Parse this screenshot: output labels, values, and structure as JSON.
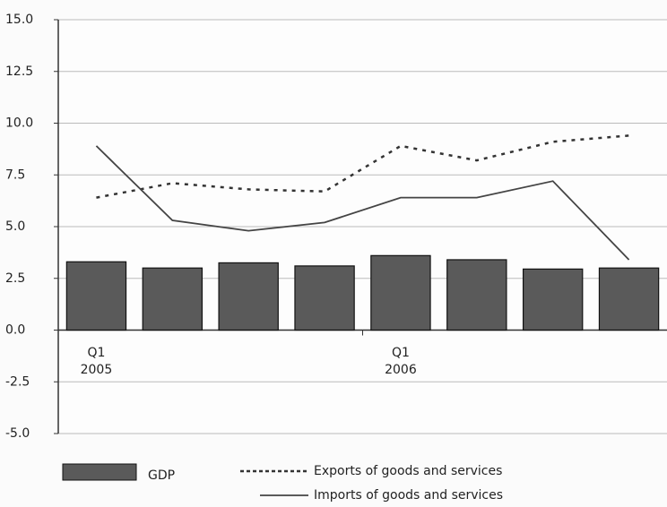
{
  "chart_data": {
    "type": "bar",
    "categories": [
      "Q1\n2005",
      null,
      null,
      null,
      "Q1\n2006",
      null,
      null,
      null
    ],
    "series": [
      {
        "name": "GDP",
        "type": "bar",
        "color": "#5a5a5a",
        "values": [
          3.3,
          3.0,
          3.25,
          3.1,
          3.6,
          3.4,
          2.95,
          3.0
        ]
      },
      {
        "name": "Exports of goods and services",
        "type": "line",
        "line_style": "dashed",
        "color": "#333333",
        "values": [
          6.4,
          7.1,
          6.8,
          6.7,
          8.9,
          8.2,
          9.1,
          9.4
        ]
      },
      {
        "name": "Imports of goods and services",
        "type": "line",
        "line_style": "solid",
        "color": "#444444",
        "values": [
          8.9,
          5.3,
          4.8,
          5.2,
          6.4,
          6.4,
          7.2,
          3.4
        ]
      }
    ],
    "ylim": [
      -5,
      15
    ],
    "yticks": [
      {
        "value": -5,
        "label": "-5.0"
      },
      {
        "value": -2.5,
        "label": "-2.5"
      },
      {
        "value": 0,
        "label": "0.0"
      },
      {
        "value": 2.5,
        "label": "2.5"
      },
      {
        "value": 5,
        "label": "5.0"
      },
      {
        "value": 7.5,
        "label": "7.5"
      },
      {
        "value": 10,
        "label": "10.0"
      },
      {
        "value": 12.5,
        "label": "12.5"
      },
      {
        "value": 15,
        "label": "15.0"
      }
    ],
    "grid": true,
    "legend": "bottom"
  }
}
